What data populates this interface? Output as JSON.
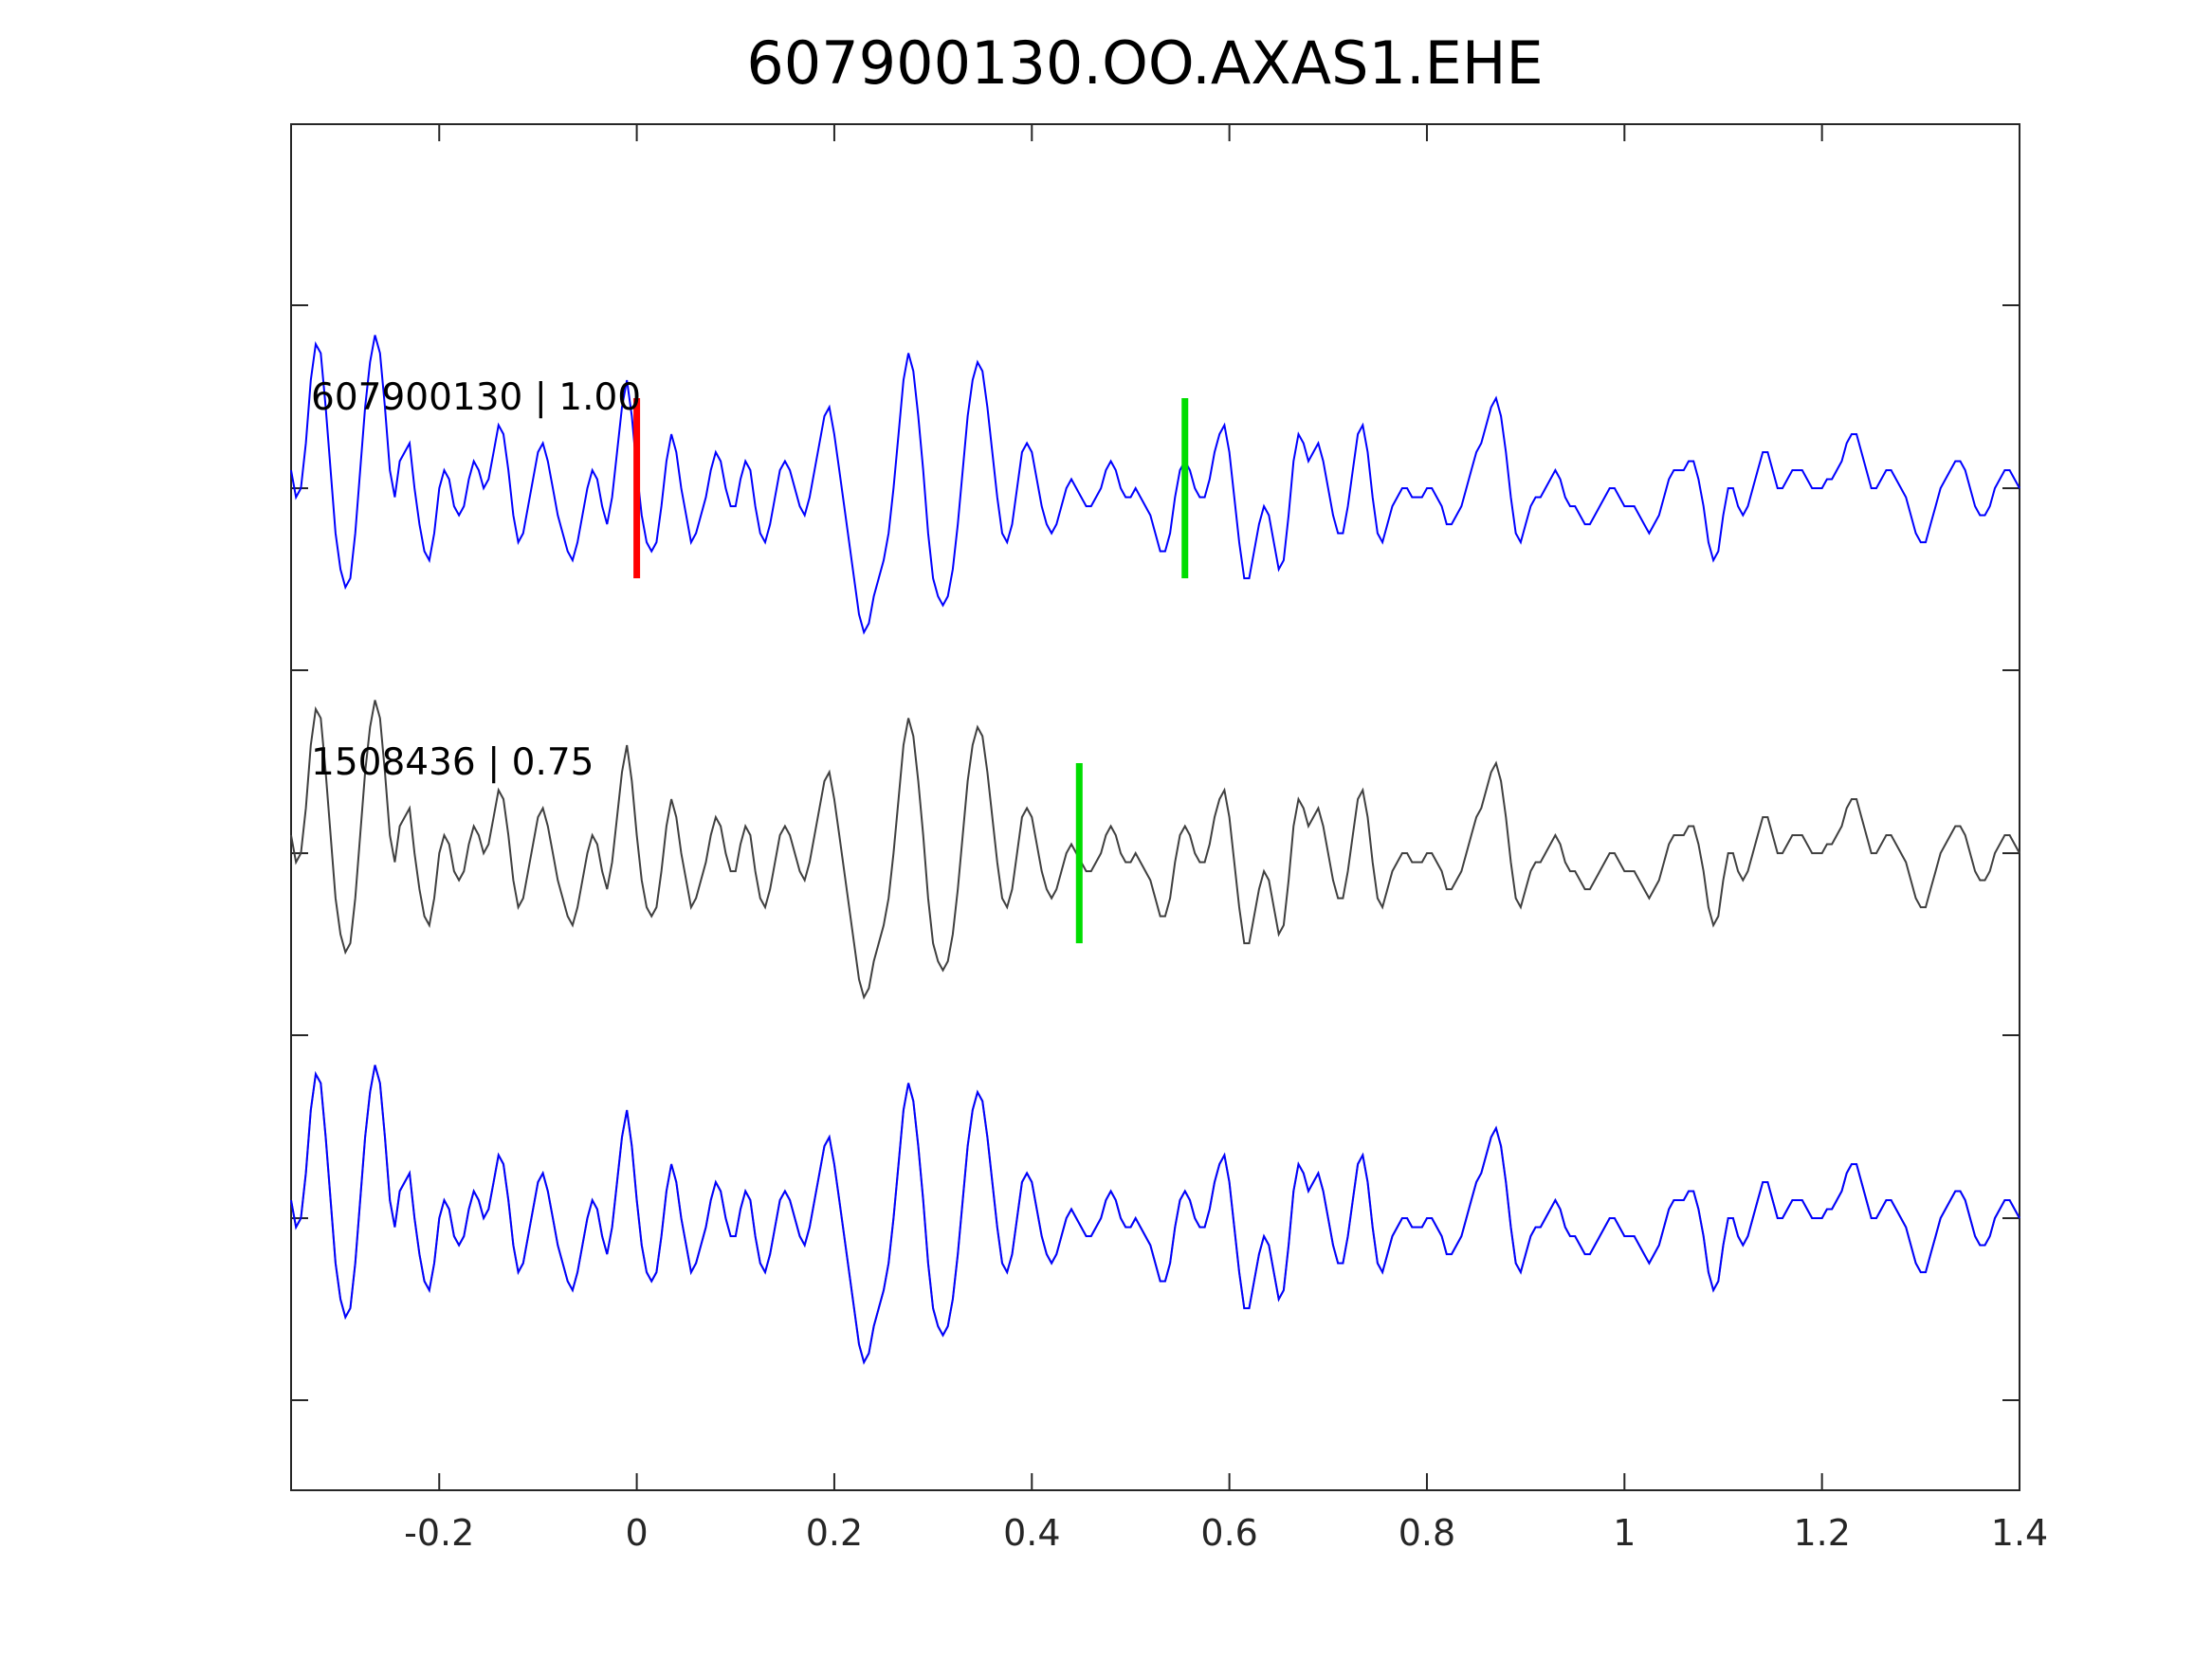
{
  "chart_data": {
    "type": "line",
    "title": "607900130.OO.AXAS1.EHE",
    "xlabel": "",
    "ylabel": "",
    "xlim": [
      -0.35,
      1.4
    ],
    "xticks": [
      -0.2,
      0,
      0.2,
      0.4,
      0.6,
      0.8,
      1,
      1.2,
      1.4
    ],
    "xtick_labels": [
      "-0.2",
      "0",
      "0.2",
      "0.4",
      "0.6",
      "0.8",
      "1",
      "1.2",
      "1.4"
    ],
    "trace_labels": [
      "607900130 | 1.00",
      "1508436 | 0.75"
    ],
    "colors": {
      "target": "#0000ff",
      "template": "#404040",
      "overlay_template": "#808080",
      "pick_red": "#ff0000",
      "pick_green": "#00dd00",
      "axis": "#262626"
    },
    "picks": [
      {
        "trace": 0,
        "x": 0.0,
        "color": "red"
      },
      {
        "trace": 0,
        "x": 0.555,
        "color": "green"
      },
      {
        "trace": 1,
        "x": 0.448,
        "color": "green"
      }
    ],
    "series": [
      {
        "values": [
          0.2,
          -0.1,
          0.0,
          0.5,
          1.2,
          1.6,
          1.5,
          0.9,
          0.2,
          -0.5,
          -0.9,
          -1.1,
          -1.0,
          -0.5,
          0.2,
          0.9,
          1.4,
          1.7,
          1.5,
          0.9,
          0.2,
          -0.1,
          0.3,
          0.4,
          0.5,
          0.0,
          -0.4,
          -0.7,
          -0.8,
          -0.5,
          0.0,
          0.2,
          0.1,
          -0.2,
          -0.3,
          -0.2,
          0.1,
          0.3,
          0.2,
          0.0,
          0.1,
          0.4,
          0.7,
          0.6,
          0.2,
          -0.3,
          -0.6,
          -0.5,
          -0.2,
          0.1,
          0.4,
          0.5,
          0.3,
          0.0,
          -0.3,
          -0.5,
          -0.7,
          -0.8,
          -0.6,
          -0.3,
          0.0,
          0.2,
          0.1,
          -0.2,
          -0.4,
          -0.1,
          0.4,
          0.9,
          1.2,
          0.8,
          0.2,
          -0.3,
          -0.6,
          -0.7,
          -0.6,
          -0.2,
          0.3,
          0.6,
          0.4,
          0.0,
          -0.3,
          -0.6,
          -0.5,
          -0.3,
          -0.1,
          0.2,
          0.4,
          0.3,
          0.0,
          -0.2,
          -0.2,
          0.1,
          0.3,
          0.2,
          -0.2,
          -0.5,
          -0.6,
          -0.4,
          -0.1,
          0.2,
          0.3,
          0.2,
          0.0,
          -0.2,
          -0.3,
          -0.1,
          0.2,
          0.5,
          0.8,
          0.9,
          0.6,
          0.2,
          -0.2,
          -0.6,
          -1.0,
          -1.4,
          -1.6,
          -1.5,
          -1.2,
          -1.0,
          -0.8,
          -0.5,
          0.0,
          0.6,
          1.2,
          1.5,
          1.3,
          0.8,
          0.2,
          -0.5,
          -1.0,
          -1.2,
          -1.3,
          -1.2,
          -0.9,
          -0.4,
          0.2,
          0.8,
          1.2,
          1.4,
          1.3,
          0.9,
          0.4,
          -0.1,
          -0.5,
          -0.6,
          -0.4,
          0.0,
          0.4,
          0.5,
          0.4,
          0.1,
          -0.2,
          -0.4,
          -0.5,
          -0.4,
          -0.2,
          0.0,
          0.1,
          0.0,
          -0.1,
          -0.2,
          -0.2,
          -0.1,
          0.0,
          0.2,
          0.3,
          0.2,
          0.0,
          -0.1,
          -0.1,
          0.0,
          -0.1,
          -0.2,
          -0.3,
          -0.5,
          -0.7,
          -0.7,
          -0.5,
          -0.1,
          0.2,
          0.3,
          0.2,
          0.0,
          -0.1,
          -0.1,
          0.1,
          0.4,
          0.6,
          0.7,
          0.4,
          -0.1,
          -0.6,
          -1.0,
          -1.0,
          -0.7,
          -0.4,
          -0.2,
          -0.3,
          -0.6,
          -0.9,
          -0.8,
          -0.3,
          0.3,
          0.6,
          0.5,
          0.3,
          0.4,
          0.5,
          0.3,
          0.0,
          -0.3,
          -0.5,
          -0.5,
          -0.2,
          0.2,
          0.6,
          0.7,
          0.4,
          -0.1,
          -0.5,
          -0.6,
          -0.4,
          -0.2,
          -0.1,
          0.0,
          0.0,
          -0.1,
          -0.1,
          -0.1,
          0.0,
          0.0,
          -0.1,
          -0.2,
          -0.4,
          -0.4,
          -0.3,
          -0.2,
          0.0,
          0.2,
          0.4,
          0.5,
          0.7,
          0.9,
          1.0,
          0.8,
          0.4,
          -0.1,
          -0.5,
          -0.6,
          -0.4,
          -0.2,
          -0.1,
          -0.1,
          0.0,
          0.1,
          0.2,
          0.1,
          -0.1,
          -0.2,
          -0.2,
          -0.3,
          -0.4,
          -0.4,
          -0.3,
          -0.2,
          -0.1,
          0.0,
          0.0,
          -0.1,
          -0.2,
          -0.2,
          -0.2,
          -0.3,
          -0.4,
          -0.5,
          -0.4,
          -0.3,
          -0.1,
          0.1,
          0.2,
          0.2,
          0.2,
          0.3,
          0.3,
          0.1,
          -0.2,
          -0.6,
          -0.8,
          -0.7,
          -0.3,
          0.0,
          0.0,
          -0.2,
          -0.3,
          -0.2,
          0.0,
          0.2,
          0.4,
          0.4,
          0.2,
          0.0,
          0.0,
          0.1,
          0.2,
          0.2,
          0.2,
          0.1,
          0.0,
          0.0,
          0.0,
          0.1,
          0.1,
          0.2,
          0.3,
          0.5,
          0.6,
          0.6,
          0.4,
          0.2,
          0.0,
          0.0,
          0.1,
          0.2,
          0.2,
          0.1,
          0.0,
          -0.1,
          -0.3,
          -0.5,
          -0.6,
          -0.6,
          -0.4,
          -0.2,
          0.0,
          0.1,
          0.2,
          0.3,
          0.3,
          0.2,
          0.0,
          -0.2,
          -0.3,
          -0.3,
          -0.2,
          0.0,
          0.1,
          0.2,
          0.2,
          0.1,
          0.0,
          -0.1,
          -0.1,
          0.0,
          0.0,
          0.0,
          0.0,
          0.1,
          0.1,
          0.1,
          0.0
        ]
      },
      {
        "values": [
          0.2,
          -0.1,
          0.0,
          0.5,
          1.2,
          1.6,
          1.5,
          0.9,
          0.2,
          -0.5,
          -0.9,
          -1.1,
          -1.0,
          -0.5,
          0.2,
          0.9,
          1.4,
          1.7,
          1.5,
          0.9,
          0.2,
          -0.1,
          0.3,
          0.4,
          0.5,
          0.0,
          -0.4,
          -0.7,
          -0.8,
          -0.5,
          0.0,
          0.2,
          0.1,
          -0.2,
          -0.3,
          -0.2,
          0.1,
          0.3,
          0.2,
          0.0,
          0.1,
          0.4,
          0.7,
          0.6,
          0.2,
          -0.3,
          -0.6,
          -0.5,
          -0.2,
          0.1,
          0.4,
          0.5,
          0.3,
          0.0,
          -0.3,
          -0.5,
          -0.7,
          -0.8,
          -0.6,
          -0.3,
          0.0,
          0.2,
          0.1,
          -0.2,
          -0.4,
          -0.1,
          0.4,
          0.9,
          1.2,
          0.8,
          0.2,
          -0.3,
          -0.6,
          -0.7,
          -0.6,
          -0.2,
          0.3,
          0.6,
          0.4,
          0.0,
          -0.3,
          -0.6,
          -0.5,
          -0.3,
          -0.1,
          0.2,
          0.4,
          0.3,
          0.0,
          -0.2,
          -0.2,
          0.1,
          0.3,
          0.2,
          -0.2,
          -0.5,
          -0.6,
          -0.4,
          -0.1,
          0.2,
          0.3,
          0.2,
          0.0,
          -0.2,
          -0.3,
          -0.1,
          0.2,
          0.5,
          0.8,
          0.9,
          0.6,
          0.2,
          -0.2,
          -0.6,
          -1.0,
          -1.4,
          -1.6,
          -1.5,
          -1.2,
          -1.0,
          -0.8,
          -0.5,
          0.0,
          0.6,
          1.2,
          1.5,
          1.3,
          0.8,
          0.2,
          -0.5,
          -1.0,
          -1.2,
          -1.3,
          -1.2,
          -0.9,
          -0.4,
          0.2,
          0.8,
          1.2,
          1.4,
          1.3,
          0.9,
          0.4,
          -0.1,
          -0.5,
          -0.6,
          -0.4,
          0.0,
          0.4,
          0.5,
          0.4,
          0.1,
          -0.2,
          -0.4,
          -0.5,
          -0.4,
          -0.2,
          0.0,
          0.1,
          0.0,
          -0.1,
          -0.2,
          -0.2,
          -0.1,
          0.0,
          0.2,
          0.3,
          0.2,
          0.0,
          -0.1,
          -0.1,
          0.0,
          -0.1,
          -0.2,
          -0.3,
          -0.5,
          -0.7,
          -0.7,
          -0.5,
          -0.1,
          0.2,
          0.3,
          0.2,
          0.0,
          -0.1,
          -0.1,
          0.1,
          0.4,
          0.6,
          0.7,
          0.4,
          -0.1,
          -0.6,
          -1.0,
          -1.0,
          -0.7,
          -0.4,
          -0.2,
          -0.3,
          -0.6,
          -0.9,
          -0.8,
          -0.3,
          0.3,
          0.6,
          0.5,
          0.3,
          0.4,
          0.5,
          0.3,
          0.0,
          -0.3,
          -0.5,
          -0.5,
          -0.2,
          0.2,
          0.6,
          0.7,
          0.4,
          -0.1,
          -0.5,
          -0.6,
          -0.4,
          -0.2,
          -0.1,
          0.0,
          0.0,
          -0.1,
          -0.1,
          -0.1,
          0.0,
          0.0,
          -0.1,
          -0.2,
          -0.4,
          -0.4,
          -0.3,
          -0.2,
          0.0,
          0.2,
          0.4,
          0.5,
          0.7,
          0.9,
          1.0,
          0.8,
          0.4,
          -0.1,
          -0.5,
          -0.6,
          -0.4,
          -0.2,
          -0.1,
          -0.1,
          0.0,
          0.1,
          0.2,
          0.1,
          -0.1,
          -0.2,
          -0.2,
          -0.3,
          -0.4,
          -0.4,
          -0.3,
          -0.2,
          -0.1,
          0.0,
          0.0,
          -0.1,
          -0.2,
          -0.2,
          -0.2,
          -0.3,
          -0.4,
          -0.5,
          -0.4,
          -0.3,
          -0.1,
          0.1,
          0.2,
          0.2,
          0.2,
          0.3,
          0.3,
          0.1,
          -0.2,
          -0.6,
          -0.8,
          -0.7,
          -0.3,
          0.0,
          0.0,
          -0.2,
          -0.3,
          -0.2,
          0.0,
          0.2,
          0.4,
          0.4,
          0.2,
          0.0,
          0.0,
          0.1,
          0.2,
          0.2,
          0.2,
          0.1,
          0.0,
          0.0,
          0.0,
          0.1,
          0.1,
          0.2,
          0.3,
          0.5,
          0.6,
          0.6,
          0.4,
          0.2,
          0.0,
          0.0,
          0.1,
          0.2,
          0.2,
          0.1,
          0.0,
          -0.1,
          -0.3,
          -0.5,
          -0.6,
          -0.6,
          -0.4,
          -0.2,
          0.0,
          0.1,
          0.2,
          0.3,
          0.3,
          0.2,
          0.0,
          -0.2,
          -0.3,
          -0.3,
          -0.2,
          0.0,
          0.1,
          0.2,
          0.2,
          0.1,
          0.0,
          -0.1,
          -0.1,
          0.0,
          0.0,
          0.0,
          0.0,
          0.1,
          0.1,
          0.1,
          0.0
        ]
      }
    ],
    "x_start": -0.35,
    "x_step": 0.005
  }
}
